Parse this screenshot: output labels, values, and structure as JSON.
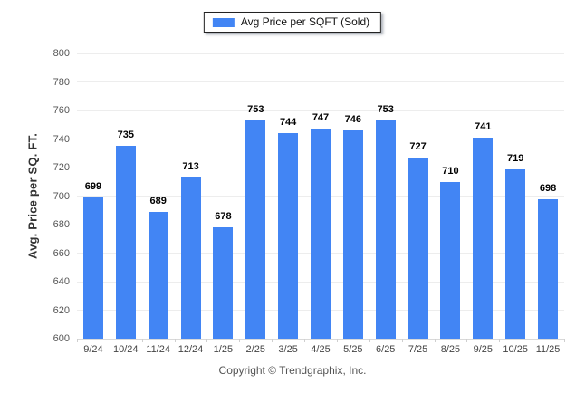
{
  "legend": {
    "label": "Avg Price per SQFT (Sold)",
    "swatch_color": "#4285F4"
  },
  "chart_data": {
    "type": "bar",
    "categories": [
      "9/24",
      "10/24",
      "11/24",
      "12/24",
      "1/25",
      "2/25",
      "3/25",
      "4/25",
      "5/25",
      "6/25",
      "7/25",
      "8/25",
      "9/25",
      "10/25",
      "11/25"
    ],
    "values": [
      699,
      735,
      689,
      713,
      678,
      753,
      744,
      747,
      746,
      753,
      727,
      710,
      741,
      719,
      698
    ],
    "title": "",
    "xlabel": "",
    "ylabel": "Avg. Price per SQ. FT.",
    "ylim": [
      600,
      800
    ],
    "ytick_step": 20,
    "grid": true,
    "legend_position": "top-center",
    "bar_color": "#4285F4",
    "gridline_color": "#ededed",
    "baseline_color": "#d9d9d9"
  },
  "footer": {
    "copyright": "Copyright © Trendgraphix, Inc."
  }
}
